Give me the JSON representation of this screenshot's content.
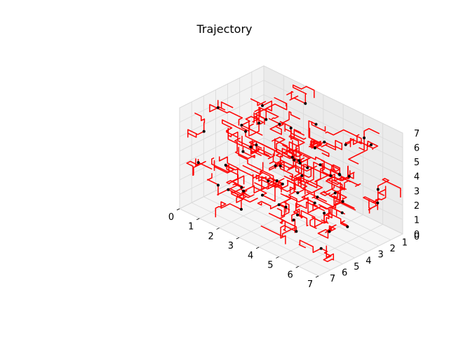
{
  "chart_data": {
    "type": "line",
    "title": "Trajectory",
    "xlabel": "",
    "ylabel": "",
    "zlabel": "",
    "xlim": [
      0,
      7
    ],
    "ylim": [
      0,
      7
    ],
    "zlim": [
      0,
      7
    ],
    "x_ticks": [
      "0",
      "1",
      "2",
      "3",
      "4",
      "5",
      "6",
      "7"
    ],
    "y_ticks": [
      "0",
      "1",
      "2",
      "3",
      "4",
      "5",
      "6",
      "7"
    ],
    "z_ticks": [
      "0",
      "1",
      "2",
      "3",
      "4",
      "5",
      "6",
      "7"
    ],
    "grid": true,
    "projection": "3d",
    "colors": {
      "trajectory": "#ff0000",
      "points": "#000000",
      "pane": "#f2f2f2",
      "grid": "#d9d9d9"
    },
    "series": [
      {
        "style": "line",
        "color": "#ff0000",
        "note_count": 120
      },
      {
        "style": "points",
        "color": "#000000"
      }
    ],
    "trajectory_segments": 120,
    "points": [
      [
        1.2,
        0.6,
        1.1
      ],
      [
        2.5,
        1.3,
        0.4
      ],
      [
        3.8,
        0.7,
        2.2
      ],
      [
        5.1,
        1.9,
        1.0
      ],
      [
        6.3,
        0.9,
        3.0
      ],
      [
        0.8,
        2.4,
        2.9
      ],
      [
        2.1,
        3.1,
        1.7
      ],
      [
        3.4,
        2.6,
        3.6
      ],
      [
        4.7,
        3.3,
        2.4
      ],
      [
        6.0,
        2.8,
        4.5
      ],
      [
        1.5,
        4.2,
        3.8
      ],
      [
        2.9,
        4.9,
        2.0
      ],
      [
        4.2,
        4.4,
        5.1
      ],
      [
        5.6,
        5.0,
        3.3
      ],
      [
        6.6,
        4.6,
        5.8
      ],
      [
        0.5,
        5.8,
        5.2
      ],
      [
        1.9,
        6.3,
        4.0
      ],
      [
        3.2,
        5.9,
        6.1
      ],
      [
        4.6,
        6.5,
        4.8
      ],
      [
        5.9,
        6.1,
        6.4
      ],
      [
        0.9,
        1.6,
        5.5
      ],
      [
        2.4,
        0.5,
        6.2
      ],
      [
        3.9,
        1.4,
        4.9
      ],
      [
        5.3,
        0.4,
        5.7
      ],
      [
        6.5,
        1.8,
        6.6
      ],
      [
        1.1,
        3.5,
        0.5
      ],
      [
        2.7,
        2.2,
        5.4
      ],
      [
        4.0,
        3.8,
        0.9
      ],
      [
        5.4,
        2.1,
        6.0
      ],
      [
        6.4,
        3.6,
        1.6
      ],
      [
        0.6,
        4.8,
        6.5
      ],
      [
        2.2,
        5.5,
        0.8
      ],
      [
        3.6,
        4.1,
        1.3
      ],
      [
        4.9,
        5.6,
        1.9
      ],
      [
        6.1,
        5.3,
        0.6
      ],
      [
        1.7,
        6.6,
        2.6
      ],
      [
        3.0,
        6.8,
        3.4
      ],
      [
        4.4,
        6.0,
        2.8
      ],
      [
        5.7,
        6.7,
        2.1
      ],
      [
        6.8,
        6.2,
        3.9
      ],
      [
        0.3,
        0.3,
        3.6
      ],
      [
        1.4,
        1.0,
        4.3
      ],
      [
        2.8,
        1.7,
        3.0
      ],
      [
        4.3,
        2.4,
        4.0
      ],
      [
        5.8,
        3.0,
        2.7
      ],
      [
        0.7,
        3.0,
        4.6
      ],
      [
        2.0,
        3.7,
        5.9
      ],
      [
        3.5,
        3.4,
        4.4
      ],
      [
        5.0,
        4.0,
        6.3
      ],
      [
        6.2,
        4.3,
        4.1
      ],
      [
        1.3,
        5.1,
        1.4
      ],
      [
        2.6,
        5.8,
        6.6
      ],
      [
        4.1,
        5.2,
        3.7
      ],
      [
        5.5,
        5.9,
        5.5
      ],
      [
        6.7,
        5.6,
        2.3
      ],
      [
        0.4,
        6.1,
        3.1
      ],
      [
        1.8,
        2.0,
        2.1
      ],
      [
        3.3,
        1.1,
        5.6
      ],
      [
        4.8,
        1.6,
        3.3
      ],
      [
        6.1,
        0.6,
        1.8
      ]
    ]
  }
}
